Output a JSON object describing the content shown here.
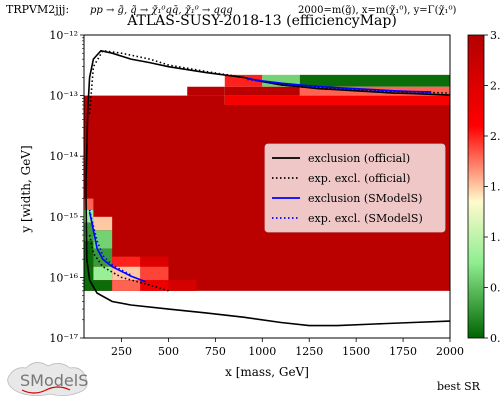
{
  "header": {
    "topology": "TRPVM2jjj:",
    "process": "pp → g̃, q̃ → χ̃₁⁰qq̄, χ̃₁⁰ → qqq",
    "mass_info": "2000=m(g̃), x=m(χ̃₁⁰), y=Γ(χ̃₁⁰)"
  },
  "footer": {
    "best_sr": "best SR",
    "logo_text": "SModelS"
  },
  "colors": {
    "cmap_low": "#006400",
    "cmap_mid_low": "#90ee90",
    "cmap_mid": "#fffacd",
    "cmap_mid_high": "#ff0000",
    "cmap_high": "#b30000",
    "official_line": "#000000",
    "smodels_line": "#0000ff"
  },
  "chart_data": {
    "type": "heatmap",
    "title": "ATLAS-SUSY-2018-13 (efficiencyMap)",
    "xlabel": "x [mass, GeV]",
    "ylabel": "y [width, GeV]",
    "xlim": [
      50,
      2000
    ],
    "ylim": [
      1e-17,
      1e-12
    ],
    "yscale": "log",
    "xticks": [
      250,
      500,
      750,
      1000,
      1250,
      1500,
      1750,
      2000
    ],
    "yticks": [
      1e-17,
      1e-16,
      1e-15,
      1e-14,
      1e-13,
      1e-12
    ],
    "ytick_labels": [
      "10⁻¹⁷",
      "10⁻¹⁶",
      "10⁻¹⁵",
      "10⁻¹⁴",
      "10⁻¹³",
      "10⁻¹²"
    ],
    "colorbar": {
      "range": [
        0,
        3
      ],
      "ticks": [
        0,
        0.5,
        1,
        1.5,
        2,
        2.5,
        3
      ],
      "tick_labels": [
        "0.",
        "0.",
        "1.",
        "1.",
        "2.",
        "2.",
        "3."
      ]
    },
    "cells": [
      {
        "x": [
          50,
          800
        ],
        "y": [
          7e-14,
          1e-13
        ],
        "v": 2.9
      },
      {
        "x": [
          600,
          800
        ],
        "y": [
          1e-13,
          1.4e-13
        ],
        "v": 2.9
      },
      {
        "x": [
          800,
          1000
        ],
        "y": [
          1.4e-13,
          2.2e-13
        ],
        "v": 2.0
      },
      {
        "x": [
          1000,
          1200
        ],
        "y": [
          1.4e-13,
          2.2e-13
        ],
        "v": 0.6
      },
      {
        "x": [
          1200,
          2000
        ],
        "y": [
          1.4e-13,
          2.2e-13
        ],
        "v": 0.05
      },
      {
        "x": [
          800,
          1200
        ],
        "y": [
          1e-13,
          1.4e-13
        ],
        "v": 2.9
      },
      {
        "x": [
          1200,
          2000
        ],
        "y": [
          1e-13,
          1.4e-13
        ],
        "v": 1.8
      },
      {
        "x": [
          800,
          2000
        ],
        "y": [
          7e-14,
          1e-13
        ],
        "v": 2.2
      },
      {
        "x": [
          50,
          2000
        ],
        "y": [
          6e-17,
          7e-14
        ],
        "v": 2.9
      },
      {
        "x": [
          50,
          100
        ],
        "y": [
          1.3e-15,
          2e-15
        ],
        "v": 1.8
      },
      {
        "x": [
          50,
          100
        ],
        "y": [
          8e-16,
          1.3e-15
        ],
        "v": 0.8
      },
      {
        "x": [
          50,
          100
        ],
        "y": [
          4e-16,
          8e-16
        ],
        "v": 0.3
      },
      {
        "x": [
          50,
          100
        ],
        "y": [
          1.5e-16,
          4e-16
        ],
        "v": 0.05
      },
      {
        "x": [
          50,
          100
        ],
        "y": [
          6e-17,
          1.5e-16
        ],
        "v": 0.05
      },
      {
        "x": [
          100,
          200
        ],
        "y": [
          6e-16,
          1e-15
        ],
        "v": 1.5
      },
      {
        "x": [
          100,
          200
        ],
        "y": [
          3e-16,
          6e-16
        ],
        "v": 0.6
      },
      {
        "x": [
          100,
          200
        ],
        "y": [
          1.5e-16,
          3e-16
        ],
        "v": 0.3
      },
      {
        "x": [
          100,
          200
        ],
        "y": [
          9e-17,
          1.5e-16
        ],
        "v": 0.8
      },
      {
        "x": [
          100,
          200
        ],
        "y": [
          6e-17,
          9e-17
        ],
        "v": 0.05
      },
      {
        "x": [
          200,
          350
        ],
        "y": [
          1.5e-16,
          2.2e-16
        ],
        "v": 2.0
      },
      {
        "x": [
          200,
          350
        ],
        "y": [
          9e-17,
          1.5e-16
        ],
        "v": 1.5
      },
      {
        "x": [
          200,
          350
        ],
        "y": [
          6e-17,
          9e-17
        ],
        "v": 1.8
      },
      {
        "x": [
          350,
          500
        ],
        "y": [
          1.5e-16,
          2.2e-16
        ],
        "v": 2.5
      },
      {
        "x": [
          350,
          500
        ],
        "y": [
          9e-17,
          1.5e-16
        ],
        "v": 1.9
      },
      {
        "x": [
          350,
          500
        ],
        "y": [
          6e-17,
          9e-17
        ],
        "v": 2.3
      },
      {
        "x": [
          500,
          650
        ],
        "y": [
          6e-17,
          9e-17
        ],
        "v": 2.6
      }
    ],
    "series": [
      {
        "name": "exclusion (official)",
        "style": "solid",
        "color": "#000000",
        "x": [
          60,
          70,
          80,
          100,
          140,
          200,
          300,
          400,
          500,
          700,
          900,
          1000,
          1100,
          1200,
          1300,
          1400,
          1500,
          1600,
          1700,
          1800,
          1900,
          2000
        ],
        "y": [
          3e-15,
          6e-14,
          2e-13,
          4e-13,
          5.5e-13,
          5e-13,
          4e-13,
          3.5e-13,
          3e-13,
          2.4e-13,
          2e-13,
          1.7e-13,
          1.5e-13,
          1.4e-13,
          1.3e-13,
          1.25e-13,
          1.2e-13,
          1.15e-13,
          1.1e-13,
          1.08e-13,
          1.05e-13,
          1.02e-13
        ]
      },
      {
        "name": "",
        "style": "solid",
        "color": "#000000",
        "x": [
          60,
          65,
          80,
          120,
          200,
          300,
          500,
          700,
          900,
          1100,
          1250,
          1400,
          1600,
          1800,
          2000
        ],
        "y": [
          3e-15,
          2e-16,
          9e-17,
          5.5e-17,
          4e-17,
          3.5e-17,
          3e-17,
          2.6e-17,
          2.2e-17,
          1.8e-17,
          1.6e-17,
          1.6e-17,
          1.7e-17,
          1.8e-17,
          1.9e-17
        ]
      },
      {
        "name": "exp. excl. (official)",
        "style": "dotted",
        "color": "#000000",
        "x": [
          80,
          100,
          150,
          250,
          400,
          500,
          700,
          900,
          1000,
          1200,
          1400,
          1600,
          1800,
          2000
        ],
        "y": [
          5e-14,
          3e-13,
          5.5e-13,
          5e-13,
          4e-13,
          3.2e-13,
          2.5e-13,
          2e-13,
          1.7e-13,
          1.4e-13,
          1.3e-13,
          1.2e-13,
          1.15e-13,
          1.1e-13
        ]
      },
      {
        "name": "",
        "style": "dotted",
        "color": "#000000",
        "x": [
          80,
          100,
          150,
          250,
          400,
          500
        ],
        "y": [
          5e-16,
          2.5e-16,
          1.5e-16,
          1e-16,
          7.5e-17,
          6e-17
        ]
      },
      {
        "name": "exclusion (SModelS)",
        "style": "solid",
        "color": "#0000ff",
        "x": [
          920,
          1000,
          1100,
          1200,
          1300,
          1400,
          1500,
          1600,
          1700,
          1800,
          1900
        ],
        "y": [
          1.9e-13,
          1.75e-13,
          1.6e-13,
          1.5e-13,
          1.42e-13,
          1.35e-13,
          1.3e-13,
          1.25e-13,
          1.2e-13,
          1.17e-13,
          1.15e-13
        ]
      },
      {
        "name": "",
        "style": "solid",
        "color": "#0000ff",
        "x": [
          80,
          100,
          120,
          150,
          200,
          300,
          380
        ],
        "y": [
          1.2e-15,
          6e-16,
          3e-16,
          2e-16,
          1.5e-16,
          1.05e-16,
          8.5e-17
        ]
      },
      {
        "name": "exp. excl. (SModelS)",
        "style": "dotted",
        "color": "#0000ff",
        "x": [
          920,
          1000,
          1100,
          1200,
          1300,
          1400,
          1500,
          1600,
          1700,
          1800,
          1900
        ],
        "y": [
          1.85e-13,
          1.7e-13,
          1.55e-13,
          1.45e-13,
          1.38e-13,
          1.32e-13,
          1.27e-13,
          1.22e-13,
          1.18e-13,
          1.15e-13,
          1.12e-13
        ]
      },
      {
        "name": "",
        "style": "dotted",
        "color": "#0000ff",
        "x": [
          80,
          100,
          120,
          150,
          200,
          300
        ],
        "y": [
          1.3e-15,
          7e-16,
          4e-16,
          2.3e-16,
          1.6e-16,
          1.1e-16
        ]
      }
    ],
    "legend": {
      "placement": "center-right",
      "entries": [
        {
          "label": "exclusion (official)",
          "style": "solid",
          "color": "#000000"
        },
        {
          "label": "exp. excl. (official)",
          "style": "dotted",
          "color": "#000000"
        },
        {
          "label": "exclusion (SModelS)",
          "style": "solid",
          "color": "#0000ff"
        },
        {
          "label": "exp. excl. (SModelS)",
          "style": "dotted",
          "color": "#0000ff"
        }
      ]
    }
  }
}
